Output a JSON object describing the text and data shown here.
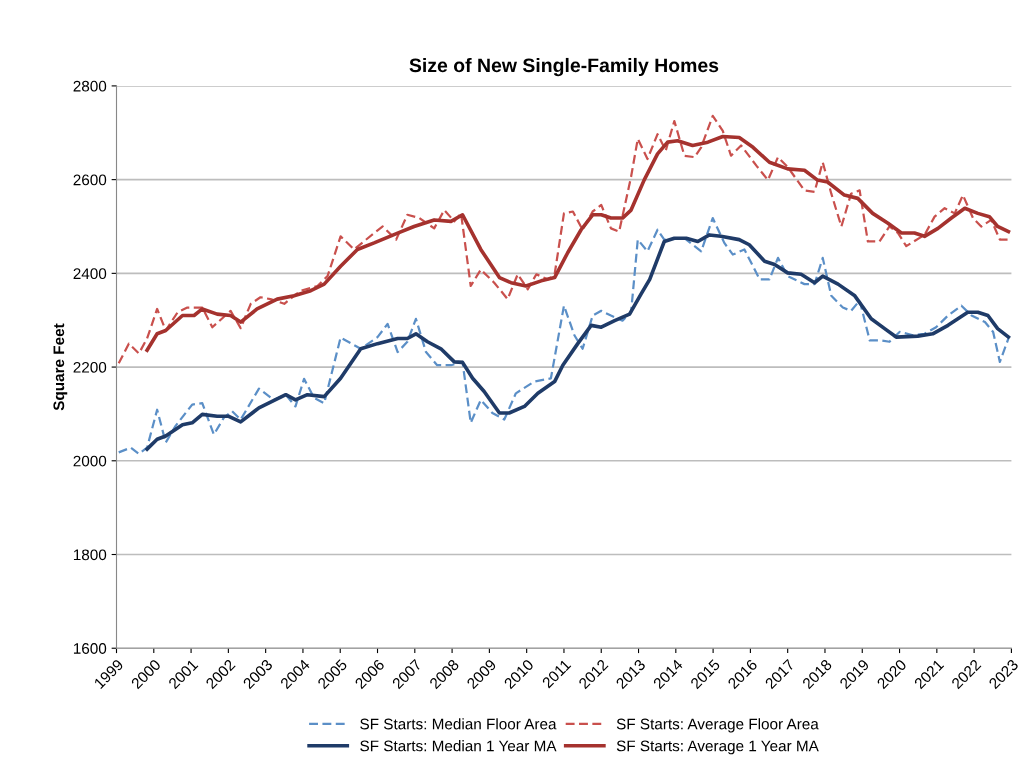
{
  "chart_data": {
    "type": "line",
    "title": "Size of New Single-Family Homes",
    "ylabel": "Square Feet",
    "xlim": [
      1999,
      2023
    ],
    "xticks": [
      1999,
      2000,
      2001,
      2002,
      2003,
      2004,
      2005,
      2006,
      2007,
      2008,
      2009,
      2010,
      2011,
      2012,
      2013,
      2014,
      2015,
      2016,
      2017,
      2018,
      2019,
      2020,
      2021,
      2022,
      2023
    ],
    "ylim": [
      1600,
      2800
    ],
    "yticks": [
      1600,
      1800,
      2000,
      2200,
      2400,
      2600,
      2800
    ],
    "grid": "y",
    "legend": "bottom",
    "marker": "none",
    "series": [
      {
        "name": "SF Starts: Median Floor Area",
        "color": "#5b8fc7",
        "line_style": "dashed",
        "x": [
          1999.06,
          1999.38,
          1999.6,
          1999.82,
          2000.09,
          2000.32,
          2000.58,
          2001.03,
          2001.3,
          2001.61,
          2001.88,
          2002.1,
          2002.33,
          2002.82,
          2003.22,
          2003.54,
          2003.8,
          2004.03,
          2004.3,
          2004.57,
          2005.01,
          2005.55,
          2006.0,
          2006.27,
          2006.54,
          2006.8,
          2007.03,
          2007.3,
          2007.6,
          2007.97,
          2008.28,
          2008.5,
          2008.77,
          2009.08,
          2009.4,
          2009.71,
          2010.2,
          2010.65,
          2011.0,
          2011.28,
          2011.5,
          2011.77,
          2012.0,
          2012.26,
          2012.57,
          2012.8,
          2012.98,
          2013.24,
          2013.51,
          2013.69,
          2014.23,
          2014.68,
          2014.99,
          2015.3,
          2015.53,
          2015.84,
          2016.25,
          2016.51,
          2016.74,
          2017.0,
          2017.45,
          2017.72,
          2017.94,
          2018.17,
          2018.48,
          2018.7,
          2018.93,
          2019.2,
          2019.51,
          2019.73,
          2020.0,
          2020.36,
          2020.67,
          2020.98,
          2021.3,
          2021.66,
          2021.93,
          2022.29,
          2022.51,
          2022.69,
          2022.92
        ],
        "values": [
          2018,
          2028,
          2015,
          2028,
          2109,
          2039,
          2074,
          2120,
          2123,
          2056,
          2092,
          2106,
          2088,
          2154,
          2130,
          2141,
          2116,
          2175,
          2134,
          2123,
          2263,
          2239,
          2264,
          2292,
          2232,
          2254,
          2303,
          2232,
          2204,
          2204,
          2211,
          2081,
          2130,
          2102,
          2088,
          2144,
          2169,
          2176,
          2331,
          2268,
          2239,
          2310,
          2320,
          2310,
          2299,
          2317,
          2472,
          2447,
          2493,
          2472,
          2475,
          2447,
          2518,
          2465,
          2440,
          2451,
          2387,
          2387,
          2433,
          2394,
          2377,
          2377,
          2433,
          2352,
          2327,
          2320,
          2342,
          2257,
          2257,
          2254,
          2275,
          2268,
          2271,
          2285,
          2310,
          2331,
          2310,
          2296,
          2275,
          2211,
          2261
        ]
      },
      {
        "name": "SF Starts: Average Floor Area",
        "color": "#c9504d",
        "line_style": "dashed",
        "x": [
          1999.06,
          1999.33,
          1999.6,
          1999.82,
          2000.09,
          2000.32,
          2000.64,
          2000.9,
          2001.3,
          2001.57,
          2002.06,
          2002.33,
          2002.6,
          2002.86,
          2003.13,
          2003.5,
          2003.94,
          2004.39,
          2004.66,
          2005.01,
          2005.37,
          2005.91,
          2006.14,
          2006.5,
          2006.8,
          2007.12,
          2007.52,
          2007.79,
          2008.06,
          2008.24,
          2008.5,
          2008.77,
          2009.13,
          2009.49,
          2009.76,
          2010.03,
          2010.26,
          2010.57,
          2010.75,
          2011.0,
          2011.24,
          2011.5,
          2011.77,
          2012.0,
          2012.26,
          2012.48,
          2012.8,
          2012.98,
          2013.24,
          2013.51,
          2013.73,
          2013.96,
          2014.23,
          2014.5,
          2014.68,
          2014.99,
          2015.26,
          2015.48,
          2015.75,
          2016.16,
          2016.47,
          2016.74,
          2017.0,
          2017.45,
          2017.72,
          2017.94,
          2018.17,
          2018.44,
          2018.7,
          2018.93,
          2019.15,
          2019.46,
          2019.73,
          2019.96,
          2020.18,
          2020.67,
          2020.94,
          2021.21,
          2021.48,
          2021.7,
          2021.97,
          2022.19,
          2022.46,
          2022.69,
          2022.92
        ],
        "values": [
          2208,
          2250,
          2229,
          2261,
          2324,
          2278,
          2317,
          2327,
          2327,
          2285,
          2320,
          2283,
          2335,
          2349,
          2345,
          2335,
          2363,
          2373,
          2394,
          2479,
          2451,
          2486,
          2500,
          2472,
          2525,
          2518,
          2496,
          2535,
          2511,
          2528,
          2373,
          2408,
          2380,
          2345,
          2398,
          2366,
          2398,
          2387,
          2398,
          2528,
          2532,
          2493,
          2532,
          2546,
          2496,
          2489,
          2606,
          2687,
          2644,
          2697,
          2662,
          2725,
          2651,
          2648,
          2669,
          2736,
          2704,
          2651,
          2673,
          2630,
          2599,
          2648,
          2627,
          2577,
          2574,
          2637,
          2570,
          2500,
          2570,
          2577,
          2468,
          2468,
          2500,
          2486,
          2458,
          2482,
          2521,
          2539,
          2528,
          2567,
          2518,
          2500,
          2514,
          2472,
          2472
        ]
      },
      {
        "name": "SF Starts: Median 1 Year MA",
        "color": "#1f3b68",
        "line_style": "solid",
        "x": [
          1999.82,
          2000.09,
          2000.32,
          2000.77,
          2001.03,
          2001.3,
          2001.7,
          2002.01,
          2002.33,
          2002.82,
          2003.54,
          2003.8,
          2004.12,
          2004.57,
          2005.01,
          2005.55,
          2006.0,
          2006.54,
          2006.8,
          2007.03,
          2007.34,
          2007.7,
          2008.06,
          2008.28,
          2008.55,
          2008.86,
          2009.27,
          2009.53,
          2009.94,
          2010.3,
          2010.75,
          2010.97,
          2011.37,
          2011.73,
          2012.0,
          2012.36,
          2012.76,
          2013.07,
          2013.3,
          2013.69,
          2013.96,
          2014.28,
          2014.59,
          2014.9,
          2015.21,
          2015.7,
          2015.97,
          2016.38,
          2016.65,
          2017.0,
          2017.36,
          2017.72,
          2017.94,
          2018.35,
          2018.8,
          2019.24,
          2019.6,
          2019.91,
          2020.49,
          2020.89,
          2021.3,
          2021.83,
          2022.1,
          2022.37,
          2022.63,
          2022.92
        ],
        "values": [
          2025,
          2046,
          2053,
          2077,
          2081,
          2099,
          2095,
          2095,
          2083,
          2113,
          2141,
          2130,
          2141,
          2137,
          2176,
          2239,
          2250,
          2261,
          2261,
          2271,
          2254,
          2239,
          2211,
          2210,
          2176,
          2148,
          2102,
          2102,
          2116,
          2144,
          2169,
          2204,
          2250,
          2289,
          2285,
          2299,
          2313,
          2356,
          2387,
          2468,
          2475,
          2475,
          2468,
          2482,
          2479,
          2472,
          2461,
          2426,
          2419,
          2401,
          2398,
          2380,
          2394,
          2377,
          2352,
          2303,
          2282,
          2264,
          2266,
          2271,
          2289,
          2317,
          2317,
          2310,
          2282,
          2264
        ]
      },
      {
        "name": "SF Starts: Average 1 Year MA",
        "color": "#a5322e",
        "line_style": "solid",
        "x": [
          1999.82,
          2000.09,
          2000.32,
          2000.77,
          2001.08,
          2001.3,
          2001.7,
          2002.06,
          2002.33,
          2002.77,
          2003.31,
          2003.76,
          2004.21,
          2004.57,
          2005.01,
          2005.46,
          2005.91,
          2006.54,
          2006.98,
          2007.52,
          2007.97,
          2008.28,
          2008.77,
          2009.27,
          2009.58,
          2009.98,
          2010.39,
          2010.75,
          2011.1,
          2011.46,
          2011.77,
          2012.0,
          2012.26,
          2012.57,
          2012.8,
          2013.15,
          2013.51,
          2013.78,
          2014.05,
          2014.45,
          2014.86,
          2015.26,
          2015.7,
          2016.07,
          2016.51,
          2017.0,
          2017.45,
          2017.8,
          2018.07,
          2018.52,
          2018.88,
          2019.28,
          2019.69,
          2020.05,
          2020.4,
          2020.67,
          2021.03,
          2021.39,
          2021.75,
          2022.1,
          2022.41,
          2022.63,
          2022.92
        ],
        "values": [
          2236,
          2271,
          2278,
          2310,
          2310,
          2324,
          2313,
          2310,
          2296,
          2324,
          2345,
          2352,
          2363,
          2377,
          2415,
          2451,
          2465,
          2486,
          2500,
          2514,
          2511,
          2525,
          2451,
          2391,
          2380,
          2373,
          2384,
          2391,
          2444,
          2493,
          2525,
          2525,
          2518,
          2518,
          2535,
          2599,
          2655,
          2680,
          2683,
          2673,
          2680,
          2692,
          2690,
          2669,
          2637,
          2623,
          2620,
          2599,
          2595,
          2567,
          2560,
          2528,
          2507,
          2486,
          2486,
          2479,
          2496,
          2518,
          2539,
          2528,
          2521,
          2500,
          2489
        ]
      }
    ]
  }
}
